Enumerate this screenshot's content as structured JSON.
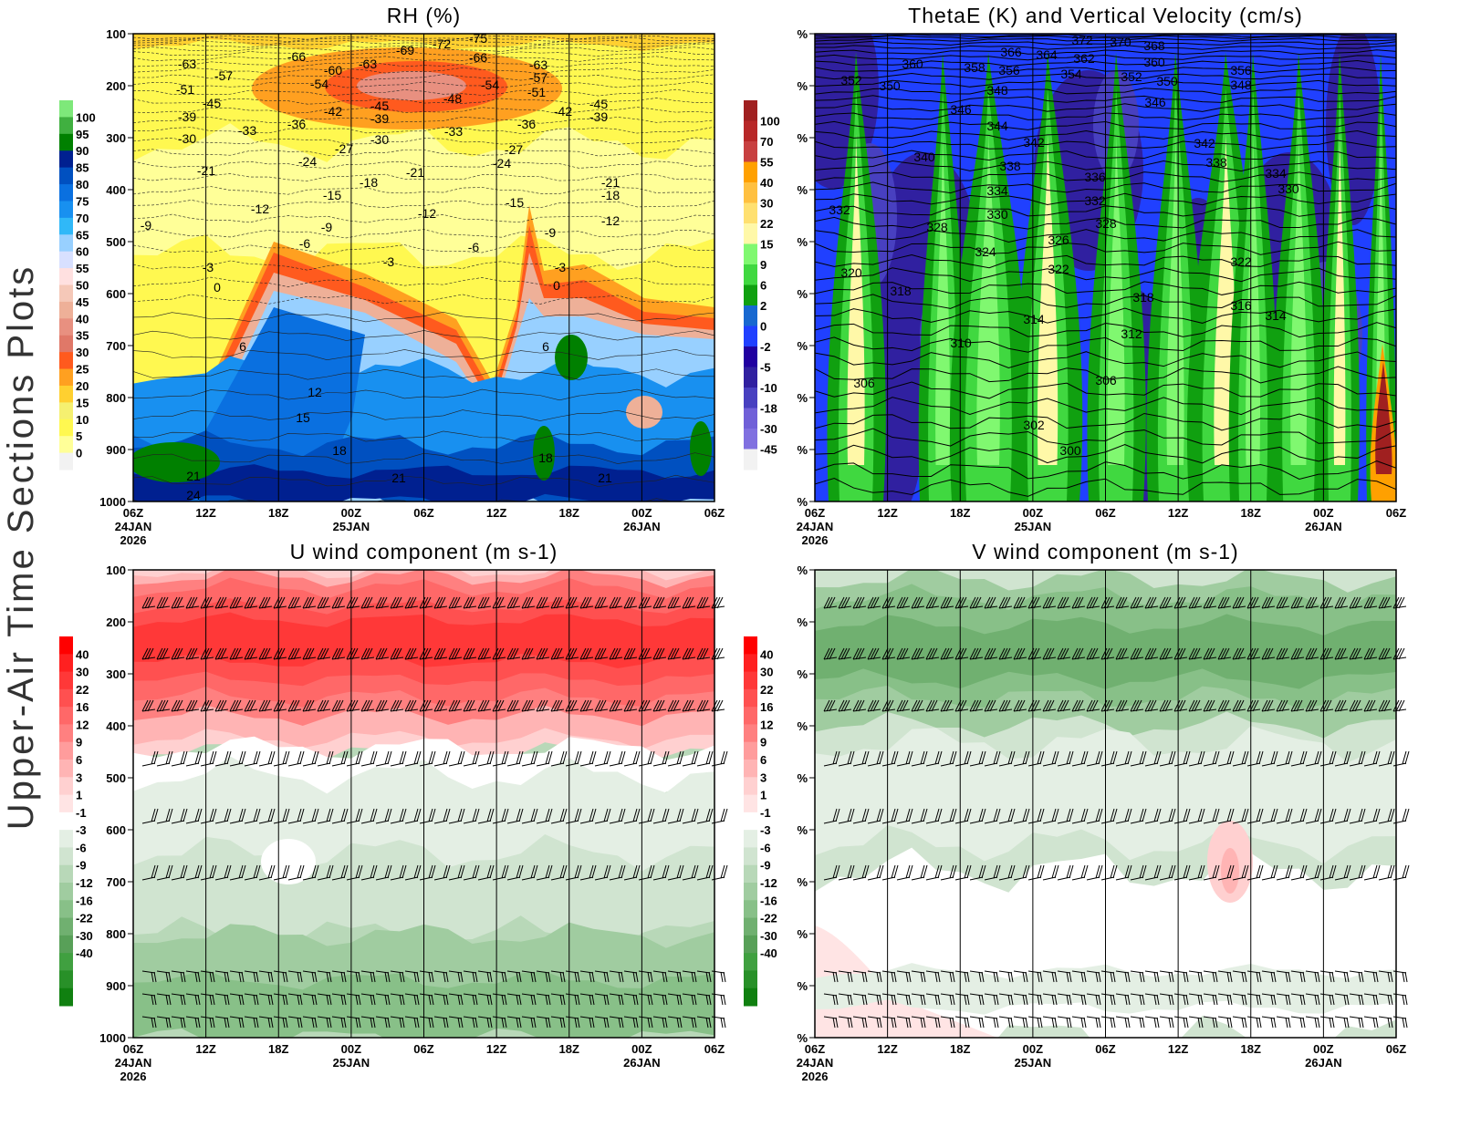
{
  "side_title": "Upper-Air Time Sections Plots",
  "x_ticks": [
    "06Z",
    "12Z",
    "18Z",
    "00Z",
    "06Z",
    "12Z",
    "18Z",
    "00Z",
    "06Z"
  ],
  "x_date_labels": [
    {
      "tick": 0,
      "lines": [
        "24JAN",
        "2026"
      ]
    },
    {
      "tick": 3,
      "lines": [
        "25JAN"
      ]
    },
    {
      "tick": 7,
      "lines": [
        "26JAN"
      ]
    }
  ],
  "chart_data": [
    {
      "type": "heatmap",
      "title": "RH (%)",
      "y_ticks": [
        "100",
        "200",
        "300",
        "400",
        "500",
        "600",
        "700",
        "800",
        "900",
        "1000"
      ],
      "ylim": [
        100,
        1000
      ],
      "y_reversed": true,
      "colorbar": {
        "labels": [
          "100",
          "95",
          "90",
          "85",
          "80",
          "75",
          "70",
          "65",
          "60",
          "55",
          "50",
          "45",
          "40",
          "35",
          "30",
          "25",
          "20",
          "15",
          "10",
          "5",
          "0"
        ],
        "colors": [
          "#7ee87a",
          "#40b040",
          "#008000",
          "#002090",
          "#0050c0",
          "#0a70e0",
          "#1890f0",
          "#30b8f8",
          "#98d0ff",
          "#d8e0ff",
          "#ffe0e0",
          "#f5c8b8",
          "#eeb098",
          "#e89080",
          "#e07868",
          "#ff5a1e",
          "#ffa020",
          "#ffd030",
          "#f5f070",
          "#fff850",
          "#ffff98",
          "#f2f2f2"
        ]
      },
      "contour_labels": [
        "-63",
        "-57",
        "-51",
        "-45",
        "-39",
        "-30",
        "-33",
        "-36",
        "-66",
        "-60",
        "-54",
        "-63",
        "-69",
        "-72",
        "-75",
        "-66",
        "-54",
        "-48",
        "-45",
        "-39",
        "-42",
        "-30",
        "-33",
        "-36",
        "-63",
        "-57",
        "-51",
        "-42",
        "-39",
        "-45",
        "-27",
        "-24",
        "-21",
        "-18",
        "-15",
        "-12",
        "-21",
        "-27",
        "-24",
        "-15",
        "-12",
        "-9",
        "-9",
        "-6",
        "-3",
        "-3",
        "-6",
        "-9",
        "-3",
        "0",
        "0",
        "-21",
        "-18",
        "-12",
        "6",
        "6",
        "12",
        "15",
        "18",
        "18",
        "21",
        "21",
        "21",
        "24"
      ]
    },
    {
      "type": "heatmap",
      "title": "ThetaE (K) and Vertical Velocity (cm/s)",
      "y_ticks": [
        "%",
        "%",
        "%",
        "%",
        "%",
        "%",
        "%",
        "%",
        "%",
        "%"
      ],
      "colorbar": {
        "labels": [
          "100",
          "70",
          "55",
          "40",
          "30",
          "22",
          "15",
          "9",
          "6",
          "2",
          "0",
          "-2",
          "-5",
          "-10",
          "-18",
          "-30",
          "-45"
        ],
        "colors": [
          "#a02020",
          "#b82828",
          "#c84040",
          "#ffa000",
          "#ffc040",
          "#ffe070",
          "#fff8a8",
          "#80f870",
          "#40d840",
          "#10a010",
          "#1868d0",
          "#2040ff",
          "#2000a0",
          "#3020a0",
          "#4840c0",
          "#7060d8",
          "#8070e0",
          "#f2f2f2"
        ]
      },
      "contour_labels": [
        "372",
        "370",
        "368",
        "366",
        "364",
        "362",
        "360",
        "360",
        "358",
        "356",
        "354",
        "352",
        "350",
        "352",
        "350",
        "348",
        "348",
        "356",
        "346",
        "346",
        "344",
        "342",
        "342",
        "340",
        "338",
        "338",
        "336",
        "334",
        "332",
        "330",
        "334",
        "330",
        "332",
        "328",
        "328",
        "326",
        "324",
        "322",
        "322",
        "320",
        "318",
        "318",
        "316",
        "314",
        "314",
        "312",
        "310",
        "306",
        "306",
        "302",
        "300"
      ]
    },
    {
      "type": "heatmap",
      "title": "U wind component (m s-1)",
      "y_ticks": [
        "100",
        "200",
        "300",
        "400",
        "500",
        "600",
        "700",
        "800",
        "900",
        "1000"
      ],
      "ylim": [
        100,
        1000
      ],
      "y_reversed": true,
      "colorbar": {
        "labels": [
          "40",
          "30",
          "22",
          "16",
          "12",
          "9",
          "6",
          "3",
          "1",
          "-1",
          "-3",
          "-6",
          "-9",
          "-12",
          "-16",
          "-22",
          "-30",
          "-40"
        ],
        "colors": [
          "#ff0000",
          "#ff2020",
          "#ff3838",
          "#ff5050",
          "#ff6868",
          "#ff8080",
          "#ff9c9c",
          "#ffb4b4",
          "#ffd0d0",
          "#ffe4e4",
          "#ffffff",
          "#e4efe4",
          "#d0e4d0",
          "#b8d8b8",
          "#a0cca0",
          "#88c088",
          "#70b070",
          "#58a058",
          "#40a040",
          "#289028",
          "#108010"
        ]
      }
    },
    {
      "type": "heatmap",
      "title": "V wind component (m s-1)",
      "y_ticks": [
        "%",
        "%",
        "%",
        "%",
        "%",
        "%",
        "%",
        "%",
        "%",
        "%"
      ],
      "colorbar": {
        "labels": [
          "40",
          "30",
          "22",
          "16",
          "12",
          "9",
          "6",
          "3",
          "1",
          "-1",
          "-3",
          "-6",
          "-9",
          "-12",
          "-16",
          "-22",
          "-30",
          "-40"
        ],
        "colors": [
          "#ff0000",
          "#ff2020",
          "#ff3838",
          "#ff5050",
          "#ff6868",
          "#ff8080",
          "#ff9c9c",
          "#ffb4b4",
          "#ffd0d0",
          "#ffe4e4",
          "#ffffff",
          "#e4efe4",
          "#d0e4d0",
          "#b8d8b8",
          "#a0cca0",
          "#88c088",
          "#70b070",
          "#58a058",
          "#40a040",
          "#289028",
          "#108010"
        ]
      }
    }
  ]
}
